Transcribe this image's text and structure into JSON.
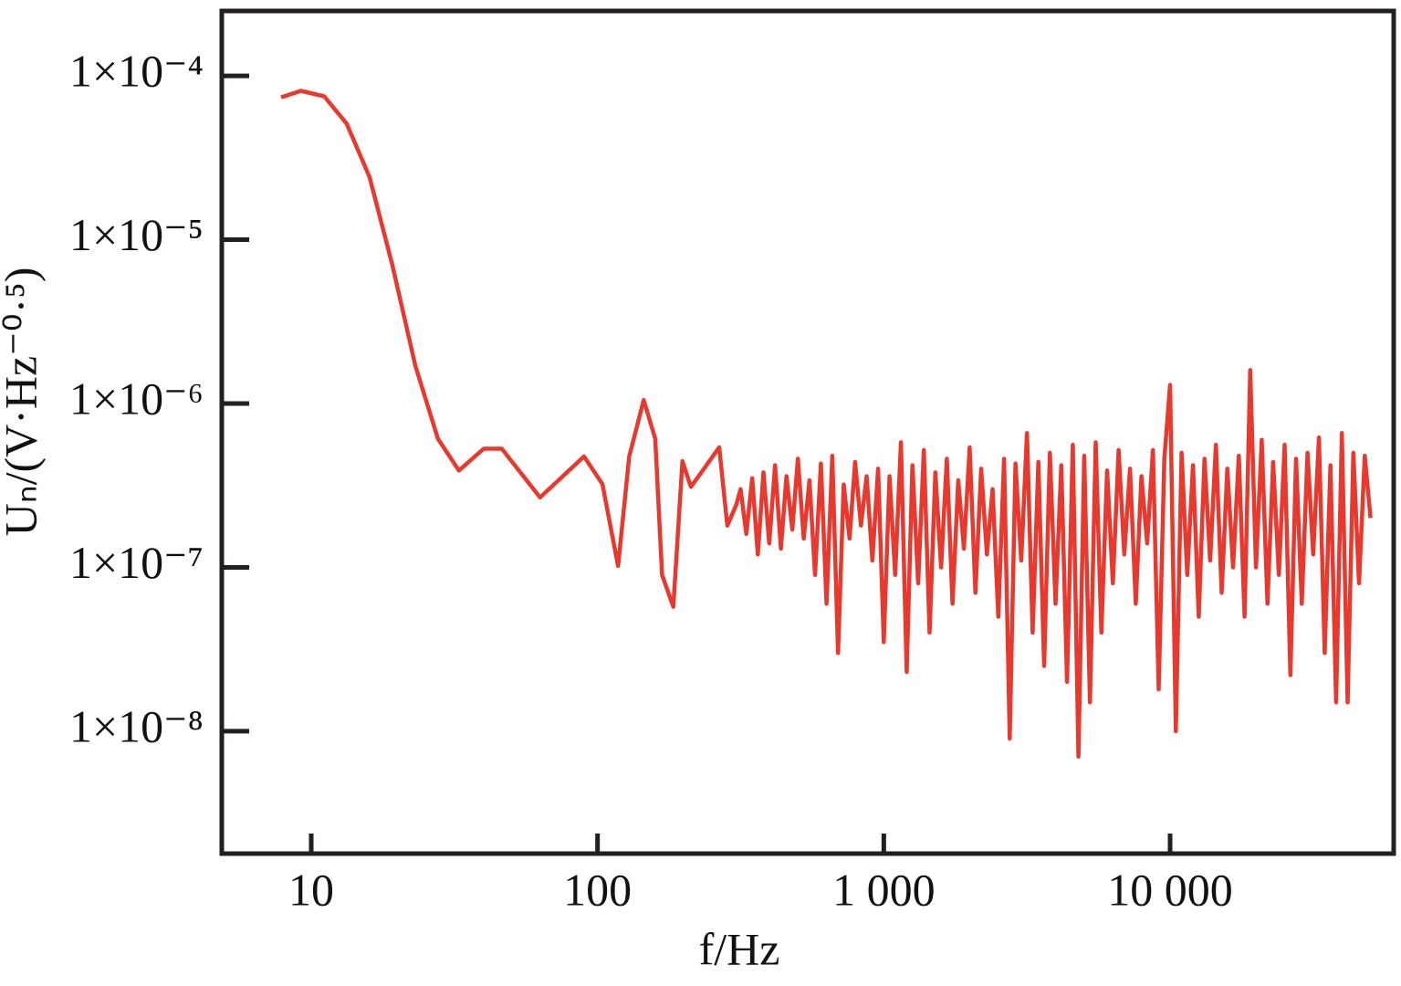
{
  "chart_data": {
    "type": "line",
    "xscale": "log",
    "yscale": "log",
    "xlabel": "f/Hz",
    "ylabel": "Uₙ/(V·Hz⁻⁰·⁵)",
    "xlim": [
      4.87,
      60400
    ],
    "ylim": [
      1.79e-09,
      0.000249
    ],
    "xticks": [
      10,
      100,
      {
        "value": 1000,
        "label": "1 000"
      },
      {
        "value": 10000,
        "label": "10 000"
      }
    ],
    "yticks": [
      {
        "value": 1e-08,
        "label": "1×10⁻⁸"
      },
      {
        "value": 1e-07,
        "label": "1×10⁻⁷"
      },
      {
        "value": 1e-06,
        "label": "1×10⁻⁶"
      },
      {
        "value": 1e-05,
        "label": "1×10⁻⁵"
      },
      {
        "value": 0.0001,
        "label": "1×10⁻⁴"
      }
    ],
    "grid": false,
    "x": [
      7.85,
      9.2,
      11.1,
      13.3,
      16,
      19.2,
      23.1,
      27.7,
      32.8,
      40,
      46.3,
      63,
      89.7,
      104,
      118,
      129,
      145,
      159,
      168,
      184,
      198,
      212,
      233,
      266,
      284,
      305,
      316,
      331,
      347,
      363,
      380,
      398,
      417,
      437,
      457,
      479,
      501,
      525,
      550,
      575,
      603,
      631,
      661,
      692,
      724,
      759,
      794,
      832,
      871,
      912,
      955,
      1000,
      1047,
      1096,
      1148,
      1202,
      1259,
      1318,
      1380,
      1445,
      1514,
      1585,
      1660,
      1738,
      1820,
      1905,
      1995,
      2089,
      2188,
      2291,
      2399,
      2512,
      2630,
      2754,
      2884,
      3020,
      3162,
      3311,
      3467,
      3631,
      3802,
      3981,
      4169,
      4365,
      4571,
      4786,
      5012,
      5248,
      5495,
      5754,
      6026,
      6310,
      6607,
      6918,
      7244,
      7586,
      7943,
      8318,
      8710,
      9120,
      9550,
      10000,
      10471,
      10965,
      11482,
      12023,
      12589,
      13183,
      13804,
      14454,
      15136,
      15849,
      16596,
      17378,
      18197,
      19055,
      19953,
      20893,
      21878,
      22909,
      23988,
      25119,
      26303,
      27542,
      28840,
      30200,
      31623,
      33113,
      34674,
      36308,
      38019,
      39811,
      41687,
      43652,
      45709,
      47863,
      50119
    ],
    "series": [
      {
        "name": "Uₙ",
        "color": "#e8392f",
        "values": [
          7.4e-05,
          8.1e-05,
          7.5e-05,
          5.1e-05,
          2.4e-05,
          7e-06,
          1.7e-06,
          6.1e-07,
          3.9e-07,
          5.3e-07,
          5.3e-07,
          2.67e-07,
          4.75e-07,
          3.23e-07,
          1.02e-07,
          4.75e-07,
          1.05e-06,
          6.1e-07,
          9e-08,
          5.75e-08,
          4.45e-07,
          3.1e-07,
          3.9e-07,
          5.4e-07,
          1.8e-07,
          2.4e-07,
          3e-07,
          1.6e-07,
          3.5e-07,
          1.2e-07,
          3.8e-07,
          1.4e-07,
          4.2e-07,
          1.3e-07,
          3.6e-07,
          1.7e-07,
          4.6e-07,
          1.5e-07,
          3.4e-07,
          9e-08,
          4.3e-07,
          6e-08,
          4.8e-07,
          3e-08,
          3.2e-07,
          1.5e-07,
          4.4e-07,
          1.8e-07,
          3.6e-07,
          1.1e-07,
          4e-07,
          3.5e-08,
          3.6e-07,
          9e-08,
          5.8e-07,
          2.3e-08,
          4.2e-07,
          8e-08,
          5.2e-07,
          4e-08,
          3.8e-07,
          1e-07,
          4.6e-07,
          6e-08,
          3.4e-07,
          1.3e-07,
          5.4e-07,
          7e-08,
          4e-07,
          1.2e-07,
          3e-07,
          5e-08,
          4.6e-07,
          9e-09,
          4.3e-07,
          1.1e-07,
          6.6e-07,
          4e-08,
          4.4e-07,
          2.5e-08,
          5e-07,
          6e-08,
          4.2e-07,
          2e-08,
          5.6e-07,
          7e-09,
          4.8e-07,
          1.5e-08,
          5.8e-07,
          4e-08,
          3.9e-07,
          8e-08,
          5.2e-07,
          1.2e-07,
          4e-07,
          6e-08,
          3.6e-07,
          1.4e-07,
          5.2e-07,
          1.8e-08,
          4.6e-07,
          1.3e-06,
          1e-08,
          5e-07,
          9e-08,
          4.2e-07,
          5e-08,
          4.6e-07,
          1.1e-07,
          5.6e-07,
          7e-08,
          4e-07,
          1e-07,
          4.8e-07,
          5e-08,
          1.6e-06,
          1e-07,
          6e-07,
          6e-08,
          4.4e-07,
          9e-08,
          5.6e-07,
          2.2e-08,
          4.6e-07,
          6e-08,
          5e-07,
          1.2e-07,
          6.2e-07,
          3e-08,
          4.2e-07,
          1.5e-08,
          6.6e-07,
          1.5e-08,
          5e-07,
          8e-08,
          4.8e-07,
          2e-07
        ]
      }
    ]
  }
}
